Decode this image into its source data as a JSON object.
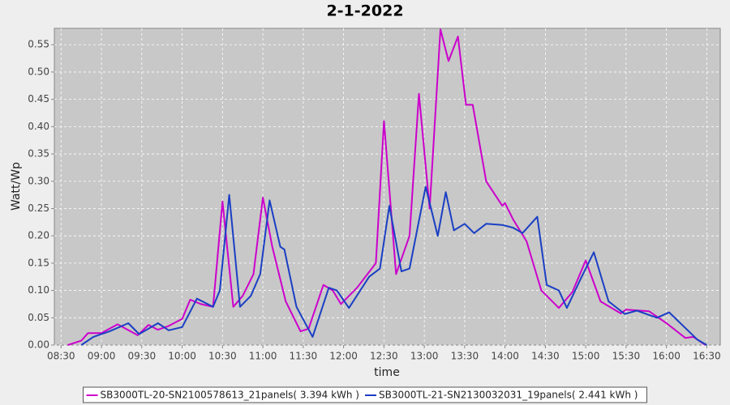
{
  "chart_data": {
    "type": "line",
    "title": "2-1-2022",
    "x_label": "time",
    "y_label": "Watt/Wp",
    "xlim": [
      "08:25",
      "16:40"
    ],
    "xticks": [
      "08:30",
      "09:00",
      "09:30",
      "10:00",
      "10:30",
      "11:00",
      "11:30",
      "12:00",
      "12:30",
      "13:00",
      "13:30",
      "14:00",
      "14:30",
      "15:00",
      "15:30",
      "16:00",
      "16:30"
    ],
    "ylim": [
      0,
      0.58
    ],
    "yticks": [
      {
        "value": 0,
        "label": "0.00"
      },
      0.05,
      {
        "value": 0.1,
        "label": "0.10"
      },
      0.15,
      {
        "value": 0.2,
        "label": "0.20"
      },
      0.25,
      {
        "value": 0.3,
        "label": "0.30"
      },
      0.35,
      {
        "value": 0.4,
        "label": "0.40"
      },
      0.45,
      {
        "value": 0.5,
        "label": "0.50"
      },
      0.55
    ],
    "grid": true,
    "legend": "bottom",
    "series": [
      {
        "name": "SB3000TL-20-SN2100578613_21panels( 3.394 kWh )",
        "color": "#cc00cc",
        "x": [
          "08:35",
          "08:45",
          "08:50",
          "09:00",
          "09:12",
          "09:27",
          "09:35",
          "09:42",
          "09:50",
          "10:00",
          "10:06",
          "10:14",
          "10:23",
          "10:30",
          "10:38",
          "10:45",
          "10:53",
          "11:00",
          "11:07",
          "11:17",
          "11:28",
          "11:34",
          "11:45",
          "11:52",
          "11:58",
          "12:10",
          "12:24",
          "12:30",
          "12:39",
          "12:49",
          "12:56",
          "13:04",
          "13:12",
          "13:18",
          "13:25",
          "13:31",
          "13:36",
          "13:46",
          "13:58",
          "14:00",
          "14:06",
          "14:16",
          "14:27",
          "14:40",
          "14:50",
          "15:00",
          "15:11",
          "15:26",
          "15:30",
          "15:47",
          "16:00",
          "16:14",
          "16:20",
          "16:29"
        ],
        "values": [
          0.0,
          0.008,
          0.022,
          0.022,
          0.038,
          0.018,
          0.037,
          0.028,
          0.035,
          0.048,
          0.083,
          0.075,
          0.07,
          0.263,
          0.07,
          0.09,
          0.13,
          0.27,
          0.18,
          0.08,
          0.025,
          0.03,
          0.11,
          0.1,
          0.075,
          0.105,
          0.15,
          0.41,
          0.13,
          0.2,
          0.46,
          0.25,
          0.578,
          0.52,
          0.565,
          0.44,
          0.44,
          0.3,
          0.255,
          0.26,
          0.23,
          0.19,
          0.1,
          0.068,
          0.097,
          0.155,
          0.08,
          0.058,
          0.065,
          0.062,
          0.04,
          0.013,
          0.015,
          0.0
        ]
      },
      {
        "name": "SB3000TL-21-SN2130032031_19panels( 2.441 kWh )",
        "color": "#1a3fc4",
        "x": [
          "08:45",
          "08:54",
          "09:06",
          "09:20",
          "09:28",
          "09:42",
          "09:50",
          "10:00",
          "10:11",
          "10:23",
          "10:28",
          "10:35",
          "10:43",
          "10:51",
          "10:58",
          "11:05",
          "11:13",
          "11:16",
          "11:25",
          "11:37",
          "11:49",
          "11:55",
          "12:04",
          "12:19",
          "12:27",
          "12:34",
          "12:43",
          "12:49",
          "13:01",
          "13:10",
          "13:16",
          "13:22",
          "13:30",
          "13:37",
          "13:46",
          "13:58",
          "14:06",
          "14:13",
          "14:24",
          "14:31",
          "14:40",
          "14:46",
          "14:56",
          "15:06",
          "15:17",
          "15:29",
          "15:38",
          "15:53",
          "16:02",
          "16:23",
          "16:30"
        ],
        "values": [
          0.0,
          0.015,
          0.025,
          0.04,
          0.02,
          0.04,
          0.027,
          0.033,
          0.085,
          0.07,
          0.1,
          0.275,
          0.07,
          0.09,
          0.13,
          0.265,
          0.18,
          0.175,
          0.07,
          0.015,
          0.105,
          0.1,
          0.068,
          0.125,
          0.14,
          0.255,
          0.135,
          0.14,
          0.29,
          0.2,
          0.28,
          0.21,
          0.222,
          0.205,
          0.222,
          0.22,
          0.215,
          0.205,
          0.235,
          0.11,
          0.1,
          0.068,
          0.12,
          0.17,
          0.08,
          0.057,
          0.063,
          0.05,
          0.06,
          0.01,
          0.0
        ]
      }
    ]
  }
}
